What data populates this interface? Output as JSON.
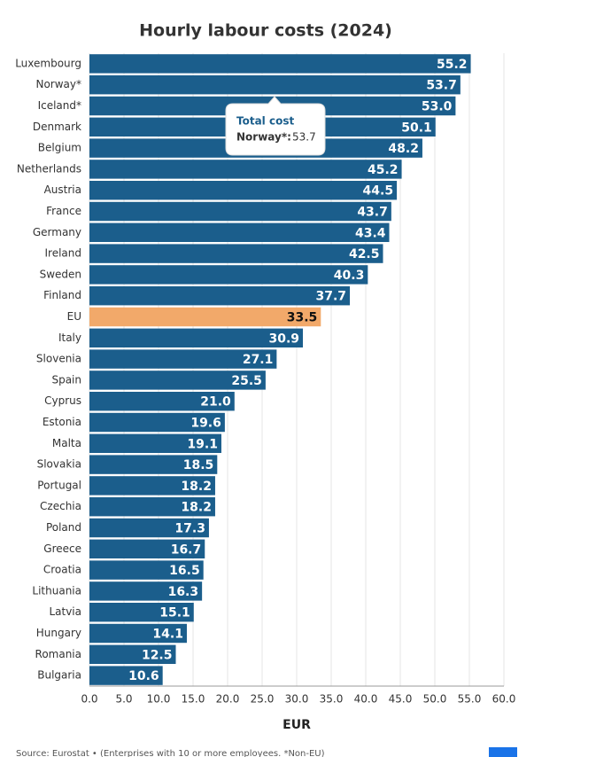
{
  "chart_data": {
    "type": "bar",
    "orientation": "horizontal",
    "title": "Hourly labour costs (2024)",
    "categories": [
      "Luxembourg",
      "Norway*",
      "Iceland*",
      "Denmark",
      "Belgium",
      "Netherlands",
      "Austria",
      "France",
      "Germany",
      "Ireland",
      "Sweden",
      "Finland",
      "EU",
      "Italy",
      "Slovenia",
      "Spain",
      "Cyprus",
      "Estonia",
      "Malta",
      "Slovakia",
      "Portugal",
      "Czechia",
      "Poland",
      "Greece",
      "Croatia",
      "Lithuania",
      "Latvia",
      "Hungary",
      "Romania",
      "Bulgaria"
    ],
    "values": [
      55.2,
      53.7,
      53.0,
      50.1,
      48.2,
      45.2,
      44.5,
      43.7,
      43.4,
      42.5,
      40.3,
      37.7,
      33.5,
      30.9,
      27.1,
      25.5,
      21.0,
      19.6,
      19.1,
      18.5,
      18.2,
      18.2,
      17.3,
      16.7,
      16.5,
      16.3,
      15.1,
      14.1,
      12.5,
      10.6
    ],
    "value_labels": [
      "55.2",
      "53.7",
      "53.0",
      "50.1",
      "48.2",
      "45.2",
      "44.5",
      "43.7",
      "43.4",
      "42.5",
      "40.3",
      "37.7",
      "33.5",
      "30.9",
      "27.1",
      "25.5",
      "21.0",
      "19.6",
      "19.1",
      "18.5",
      "18.2",
      "18.2",
      "17.3",
      "16.7",
      "16.5",
      "16.3",
      "15.1",
      "14.1",
      "12.5",
      "10.6"
    ],
    "colors": [
      "#1b5e8c",
      "#1b5e8c",
      "#1b5e8c",
      "#1b5e8c",
      "#1b5e8c",
      "#1b5e8c",
      "#1b5e8c",
      "#1b5e8c",
      "#1b5e8c",
      "#1b5e8c",
      "#1b5e8c",
      "#1b5e8c",
      "#f2a96a",
      "#1b5e8c",
      "#1b5e8c",
      "#1b5e8c",
      "#1b5e8c",
      "#1b5e8c",
      "#1b5e8c",
      "#1b5e8c",
      "#1b5e8c",
      "#1b5e8c",
      "#1b5e8c",
      "#1b5e8c",
      "#1b5e8c",
      "#1b5e8c",
      "#1b5e8c",
      "#1b5e8c",
      "#1b5e8c",
      "#1b5e8c"
    ],
    "xlabel": "EUR",
    "xlim": [
      0,
      60
    ],
    "xticks": [
      {
        "value": 0,
        "label": "0.0"
      },
      {
        "value": 5,
        "label": "5.0"
      },
      {
        "value": 10,
        "label": "10.0"
      },
      {
        "value": 15,
        "label": "15.0"
      },
      {
        "value": 20,
        "label": "20.0"
      },
      {
        "value": 25,
        "label": "25.0"
      },
      {
        "value": 30,
        "label": "30.0"
      },
      {
        "value": 35,
        "label": "35.0"
      },
      {
        "value": 40,
        "label": "40.0"
      },
      {
        "value": 45,
        "label": "45.0"
      },
      {
        "value": 50,
        "label": "50.0"
      },
      {
        "value": 55,
        "label": "55.0"
      },
      {
        "value": 60,
        "label": "60.0"
      }
    ],
    "grid": true,
    "tooltip": {
      "title": "Total cost",
      "category": "Norway*:",
      "value": 53.7
    },
    "source": "Source: Eurostat • (Enterprises with 10 or more employees. *Non-EU)"
  }
}
